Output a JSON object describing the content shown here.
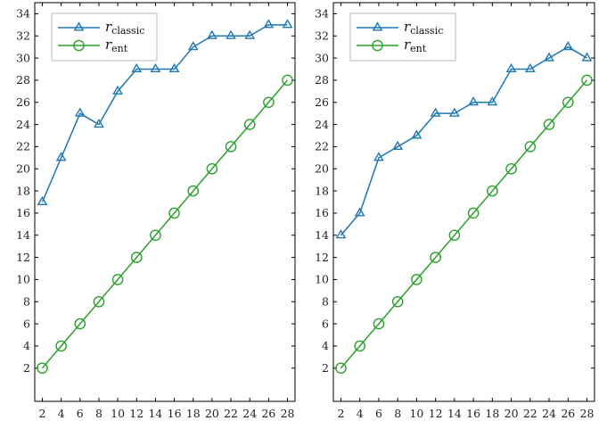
{
  "colors": {
    "classic": "#1f77b4",
    "ent": "#2ca02c",
    "axis": "#000000"
  },
  "chart_data": [
    {
      "type": "line",
      "title": "",
      "xlabel": "",
      "ylabel": "",
      "x": [
        2,
        4,
        6,
        8,
        10,
        12,
        14,
        16,
        18,
        20,
        22,
        24,
        26,
        28
      ],
      "xticks": [
        2,
        4,
        6,
        8,
        10,
        12,
        14,
        16,
        18,
        20,
        22,
        24,
        26,
        28
      ],
      "yticks": [
        2,
        4,
        6,
        8,
        10,
        12,
        14,
        16,
        18,
        20,
        22,
        24,
        26,
        28,
        30,
        32,
        34
      ],
      "xlim": [
        1.2,
        28.8
      ],
      "ylim": [
        -1,
        35
      ],
      "grid": false,
      "legend_position": "top-left",
      "series": [
        {
          "name_main": "r",
          "name_sub": "classic",
          "marker": "triangle",
          "values": [
            17,
            21,
            25,
            24,
            27,
            29,
            29,
            29,
            31,
            32,
            32,
            32,
            33,
            33
          ]
        },
        {
          "name_main": "r",
          "name_sub": "ent",
          "marker": "circle",
          "values": [
            2,
            4,
            6,
            8,
            10,
            12,
            14,
            16,
            18,
            20,
            22,
            24,
            26,
            28
          ]
        }
      ]
    },
    {
      "type": "line",
      "title": "",
      "xlabel": "",
      "ylabel": "",
      "x": [
        2,
        4,
        6,
        8,
        10,
        12,
        14,
        16,
        18,
        20,
        22,
        24,
        26,
        28
      ],
      "xticks": [
        2,
        4,
        6,
        8,
        10,
        12,
        14,
        16,
        18,
        20,
        22,
        24,
        26,
        28
      ],
      "yticks": [
        2,
        4,
        6,
        8,
        10,
        12,
        14,
        16,
        18,
        20,
        22,
        24,
        26,
        28,
        30,
        32,
        34
      ],
      "xlim": [
        1.2,
        28.8
      ],
      "ylim": [
        -1,
        35
      ],
      "grid": false,
      "legend_position": "top-left",
      "series": [
        {
          "name_main": "r",
          "name_sub": "classic",
          "marker": "triangle",
          "values": [
            14,
            16,
            21,
            22,
            23,
            25,
            25,
            26,
            26,
            29,
            29,
            30,
            31,
            30
          ]
        },
        {
          "name_main": "r",
          "name_sub": "ent",
          "marker": "circle",
          "values": [
            2,
            4,
            6,
            8,
            10,
            12,
            14,
            16,
            18,
            20,
            22,
            24,
            26,
            28
          ]
        }
      ]
    }
  ]
}
